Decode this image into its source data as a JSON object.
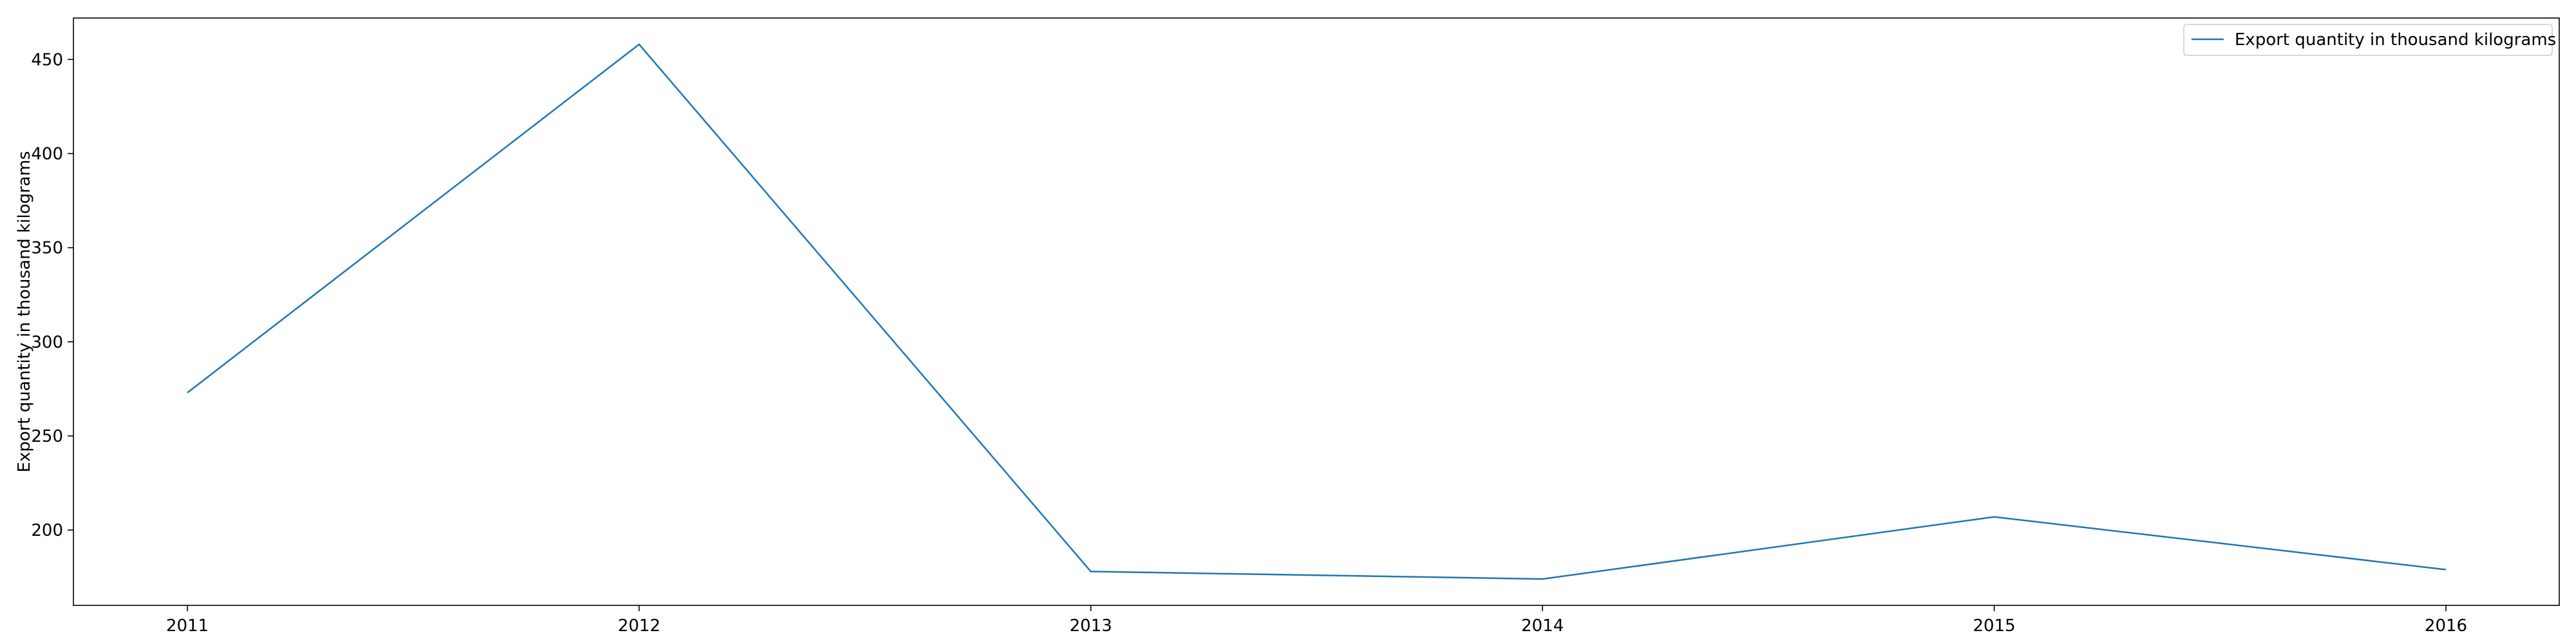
{
  "chart_data": {
    "type": "line",
    "title": "",
    "xlabel": "",
    "ylabel": "Export quantity in thousand kilograms",
    "x": [
      "2011",
      "2012",
      "2013",
      "2014",
      "2015",
      "2016"
    ],
    "series": [
      {
        "name": "Export quantity in thousand kilograms",
        "values": [
          273,
          458,
          178,
          174,
          207,
          179
        ],
        "color": "#1f77b4"
      }
    ],
    "ylim": [
      160,
      472
    ],
    "yticks": [
      200,
      250,
      300,
      350,
      400,
      450
    ],
    "grid": false,
    "legend_position": "top-right"
  }
}
